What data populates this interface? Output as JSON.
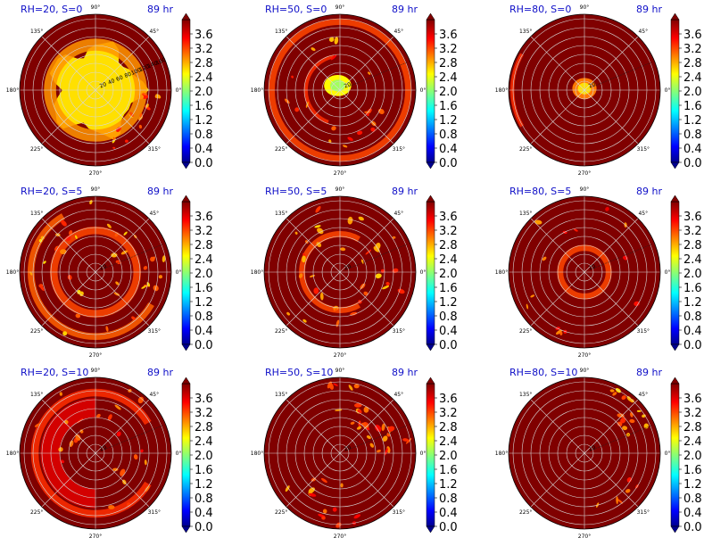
{
  "chart_data": {
    "type": "heatmap",
    "projection": "polar",
    "grid": true,
    "colormap": "jet",
    "background_value": 4.0,
    "colorbar": {
      "ticks": [
        "0.0",
        "0.4",
        "0.8",
        "1.2",
        "1.6",
        "2.0",
        "2.4",
        "2.8",
        "3.2",
        "3.6"
      ],
      "range": [
        0.0,
        4.0
      ],
      "extend": "both"
    },
    "angle_labels": [
      "0°",
      "45°",
      "90°",
      "135°",
      "180°",
      "225°",
      "270°",
      "315°"
    ],
    "radial_ticks": [
      "20",
      "40",
      "60",
      "80",
      "100",
      "120",
      "140",
      "160"
    ],
    "panels": [
      {
        "title": "RH=20, S=0",
        "time": "89 hr",
        "show_radial_labels": true,
        "features": [
          {
            "kind": "blob",
            "r": 0.62,
            "value": 2.6
          },
          {
            "kind": "ring",
            "r": 0.6,
            "w": 0.16,
            "value": 2.9,
            "ang": [
              0,
              360
            ]
          },
          {
            "kind": "spots",
            "r": [
              0.55,
              0.85
            ],
            "n": 18,
            "value": 3.1,
            "ang": [
              280,
              360
            ]
          }
        ]
      },
      {
        "title": "RH=50, S=0",
        "time": "89 hr",
        "show_radial_labels": false,
        "features": [
          {
            "kind": "spot",
            "cx": -0.03,
            "cy": 0.06,
            "rx": 0.18,
            "ry": 0.14,
            "value": 2.5
          },
          {
            "kind": "ring",
            "r": 0.9,
            "w": 0.08,
            "value": 3.2,
            "ang": [
              0,
              360
            ]
          },
          {
            "kind": "ring",
            "r": 0.45,
            "w": 0.05,
            "value": 3.3,
            "ang": [
              100,
              250
            ]
          },
          {
            "kind": "spots",
            "r": [
              0.4,
              0.75
            ],
            "n": 20,
            "value": 3.2,
            "ang": [
              0,
              360
            ]
          }
        ]
      },
      {
        "title": "RH=80, S=0",
        "time": "89 hr",
        "show_radial_labels": false,
        "features": [
          {
            "kind": "spot",
            "cx": 0.0,
            "cy": 0.02,
            "rx": 0.16,
            "ry": 0.14,
            "value": 3.0
          },
          {
            "kind": "ring",
            "r": 0.95,
            "w": 0.05,
            "value": 3.3,
            "ang": [
              150,
              210
            ]
          }
        ]
      },
      {
        "title": "RH=20, S=5",
        "time": "89 hr",
        "show_radial_labels": false,
        "features": [
          {
            "kind": "ring",
            "r": 0.55,
            "w": 0.1,
            "value": 3.2,
            "ang": [
              0,
              360
            ]
          },
          {
            "kind": "ring",
            "r": 0.85,
            "w": 0.09,
            "value": 3.1,
            "ang": [
              120,
              330
            ]
          },
          {
            "kind": "spots",
            "r": [
              0.3,
              0.95
            ],
            "n": 40,
            "value": 3.1,
            "ang": [
              0,
              360
            ]
          }
        ]
      },
      {
        "title": "RH=50, S=5",
        "time": "89 hr",
        "show_radial_labels": false,
        "features": [
          {
            "kind": "ring",
            "r": 0.5,
            "w": 0.08,
            "value": 3.2,
            "ang": [
              60,
              300
            ]
          },
          {
            "kind": "spots",
            "r": [
              0.3,
              0.9
            ],
            "n": 35,
            "value": 3.1,
            "ang": [
              0,
              360
            ]
          }
        ]
      },
      {
        "title": "RH=80, S=5",
        "time": "89 hr",
        "show_radial_labels": false,
        "features": [
          {
            "kind": "ring",
            "r": 0.32,
            "w": 0.08,
            "value": 3.2,
            "ang": [
              0,
              360
            ]
          },
          {
            "kind": "spots",
            "r": [
              0.5,
              0.95
            ],
            "n": 14,
            "value": 3.3,
            "ang": [
              0,
              360
            ]
          }
        ]
      },
      {
        "title": "RH=20, S=10",
        "time": "89 hr",
        "show_radial_labels": false,
        "features": [
          {
            "kind": "ring",
            "r": 0.6,
            "w": 0.25,
            "value": 3.6,
            "ang": [
              90,
              270
            ]
          },
          {
            "kind": "ring",
            "r": 0.8,
            "w": 0.1,
            "value": 3.3,
            "ang": [
              30,
              330
            ]
          },
          {
            "kind": "spots",
            "r": [
              0.3,
              0.95
            ],
            "n": 25,
            "value": 3.3,
            "ang": [
              0,
              360
            ]
          }
        ]
      },
      {
        "title": "RH=50, S=10",
        "time": "89 hr",
        "show_radial_labels": false,
        "features": [
          {
            "kind": "spots",
            "r": [
              0.4,
              0.95
            ],
            "n": 30,
            "value": 3.2,
            "ang": [
              0,
              110
            ]
          },
          {
            "kind": "spots",
            "r": [
              0.4,
              0.95
            ],
            "n": 14,
            "value": 3.3,
            "ang": [
              200,
              300
            ]
          }
        ]
      },
      {
        "title": "RH=80, S=10",
        "time": "89 hr",
        "show_radial_labels": false,
        "features": [
          {
            "kind": "spots",
            "r": [
              0.6,
              0.95
            ],
            "n": 16,
            "value": 3.1,
            "ang": [
              20,
              70
            ]
          },
          {
            "kind": "spots",
            "r": [
              0.6,
              0.95
            ],
            "n": 6,
            "value": 3.3,
            "ang": [
              280,
              340
            ]
          }
        ]
      }
    ]
  }
}
